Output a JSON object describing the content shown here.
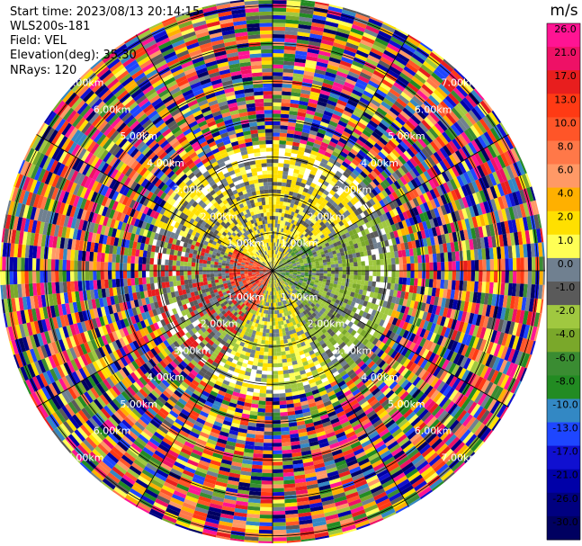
{
  "header": {
    "start_time": "Start time: 2023/08/13 20:14:15",
    "instrument": "WLS200s-181",
    "field": "Field: VEL",
    "elevation": "Elevation(deg): 35.30",
    "nrays": "NRays: 120"
  },
  "chart_data": {
    "type": "heatmap",
    "projection": "polar-ppi",
    "field": "VEL",
    "units": "m/s",
    "n_rays": 120,
    "elevation_deg": 35.3,
    "range_ring_labels": [
      "1.00km",
      "2.00km",
      "3.00km",
      "4.00km",
      "5.00km",
      "6.00km",
      "7.00km"
    ],
    "range_rings_km": [
      1,
      2,
      3,
      4,
      5,
      6,
      7
    ],
    "colorbar": {
      "title": "m/s",
      "ticks": [
        "26.0",
        "21.0",
        "17.0",
        "13.0",
        "10.0",
        "8.0",
        "6.0",
        "4.0",
        "2.0",
        "1.0",
        "0.0",
        "-1.0",
        "-2.0",
        "-4.0",
        "-6.0",
        "-8.0",
        "-10.0",
        "-13.0",
        "-17.0",
        "-21.0",
        "-26.0",
        "-30.0"
      ],
      "colors": [
        "#ff1493",
        "#ee1166",
        "#e81e1e",
        "#ff3a14",
        "#ff5528",
        "#ff7848",
        "#ff9966",
        "#ffb000",
        "#ffe000",
        "#ffff55",
        "#708090",
        "#5a5a5a",
        "#a0c840",
        "#7aa82a",
        "#3a8c32",
        "#228b22",
        "#3388c4",
        "#1e46ff",
        "#1010d0",
        "#0000a8",
        "#000080",
        "#000060"
      ]
    },
    "structure": {
      "coherent_range_km": 3.3,
      "noise_from_km": 3.3,
      "grid": true,
      "legend_placement": "right"
    }
  }
}
